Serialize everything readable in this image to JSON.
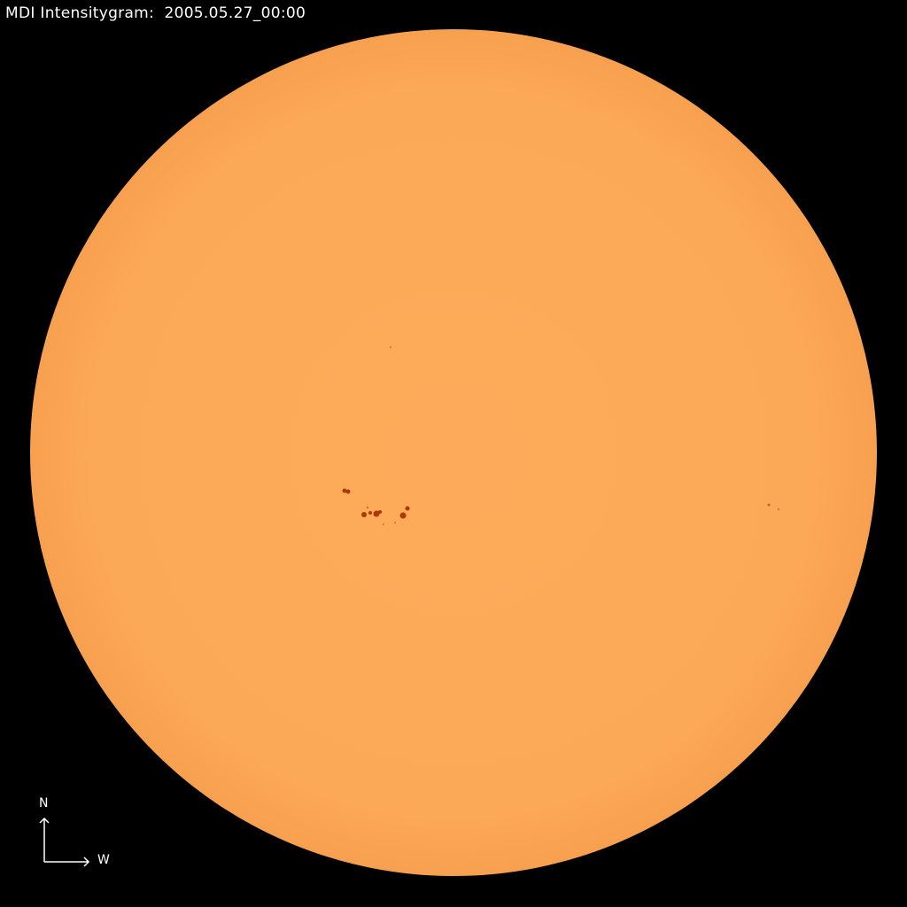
{
  "title": "MDI Intensitygram:  2005.05.27_00:00",
  "orientation": {
    "north": "N",
    "west": "W"
  },
  "colors": {
    "background": "#000000",
    "disk": "#fdaa58",
    "sunspot": "#a83a08",
    "text": "#ffffff"
  }
}
